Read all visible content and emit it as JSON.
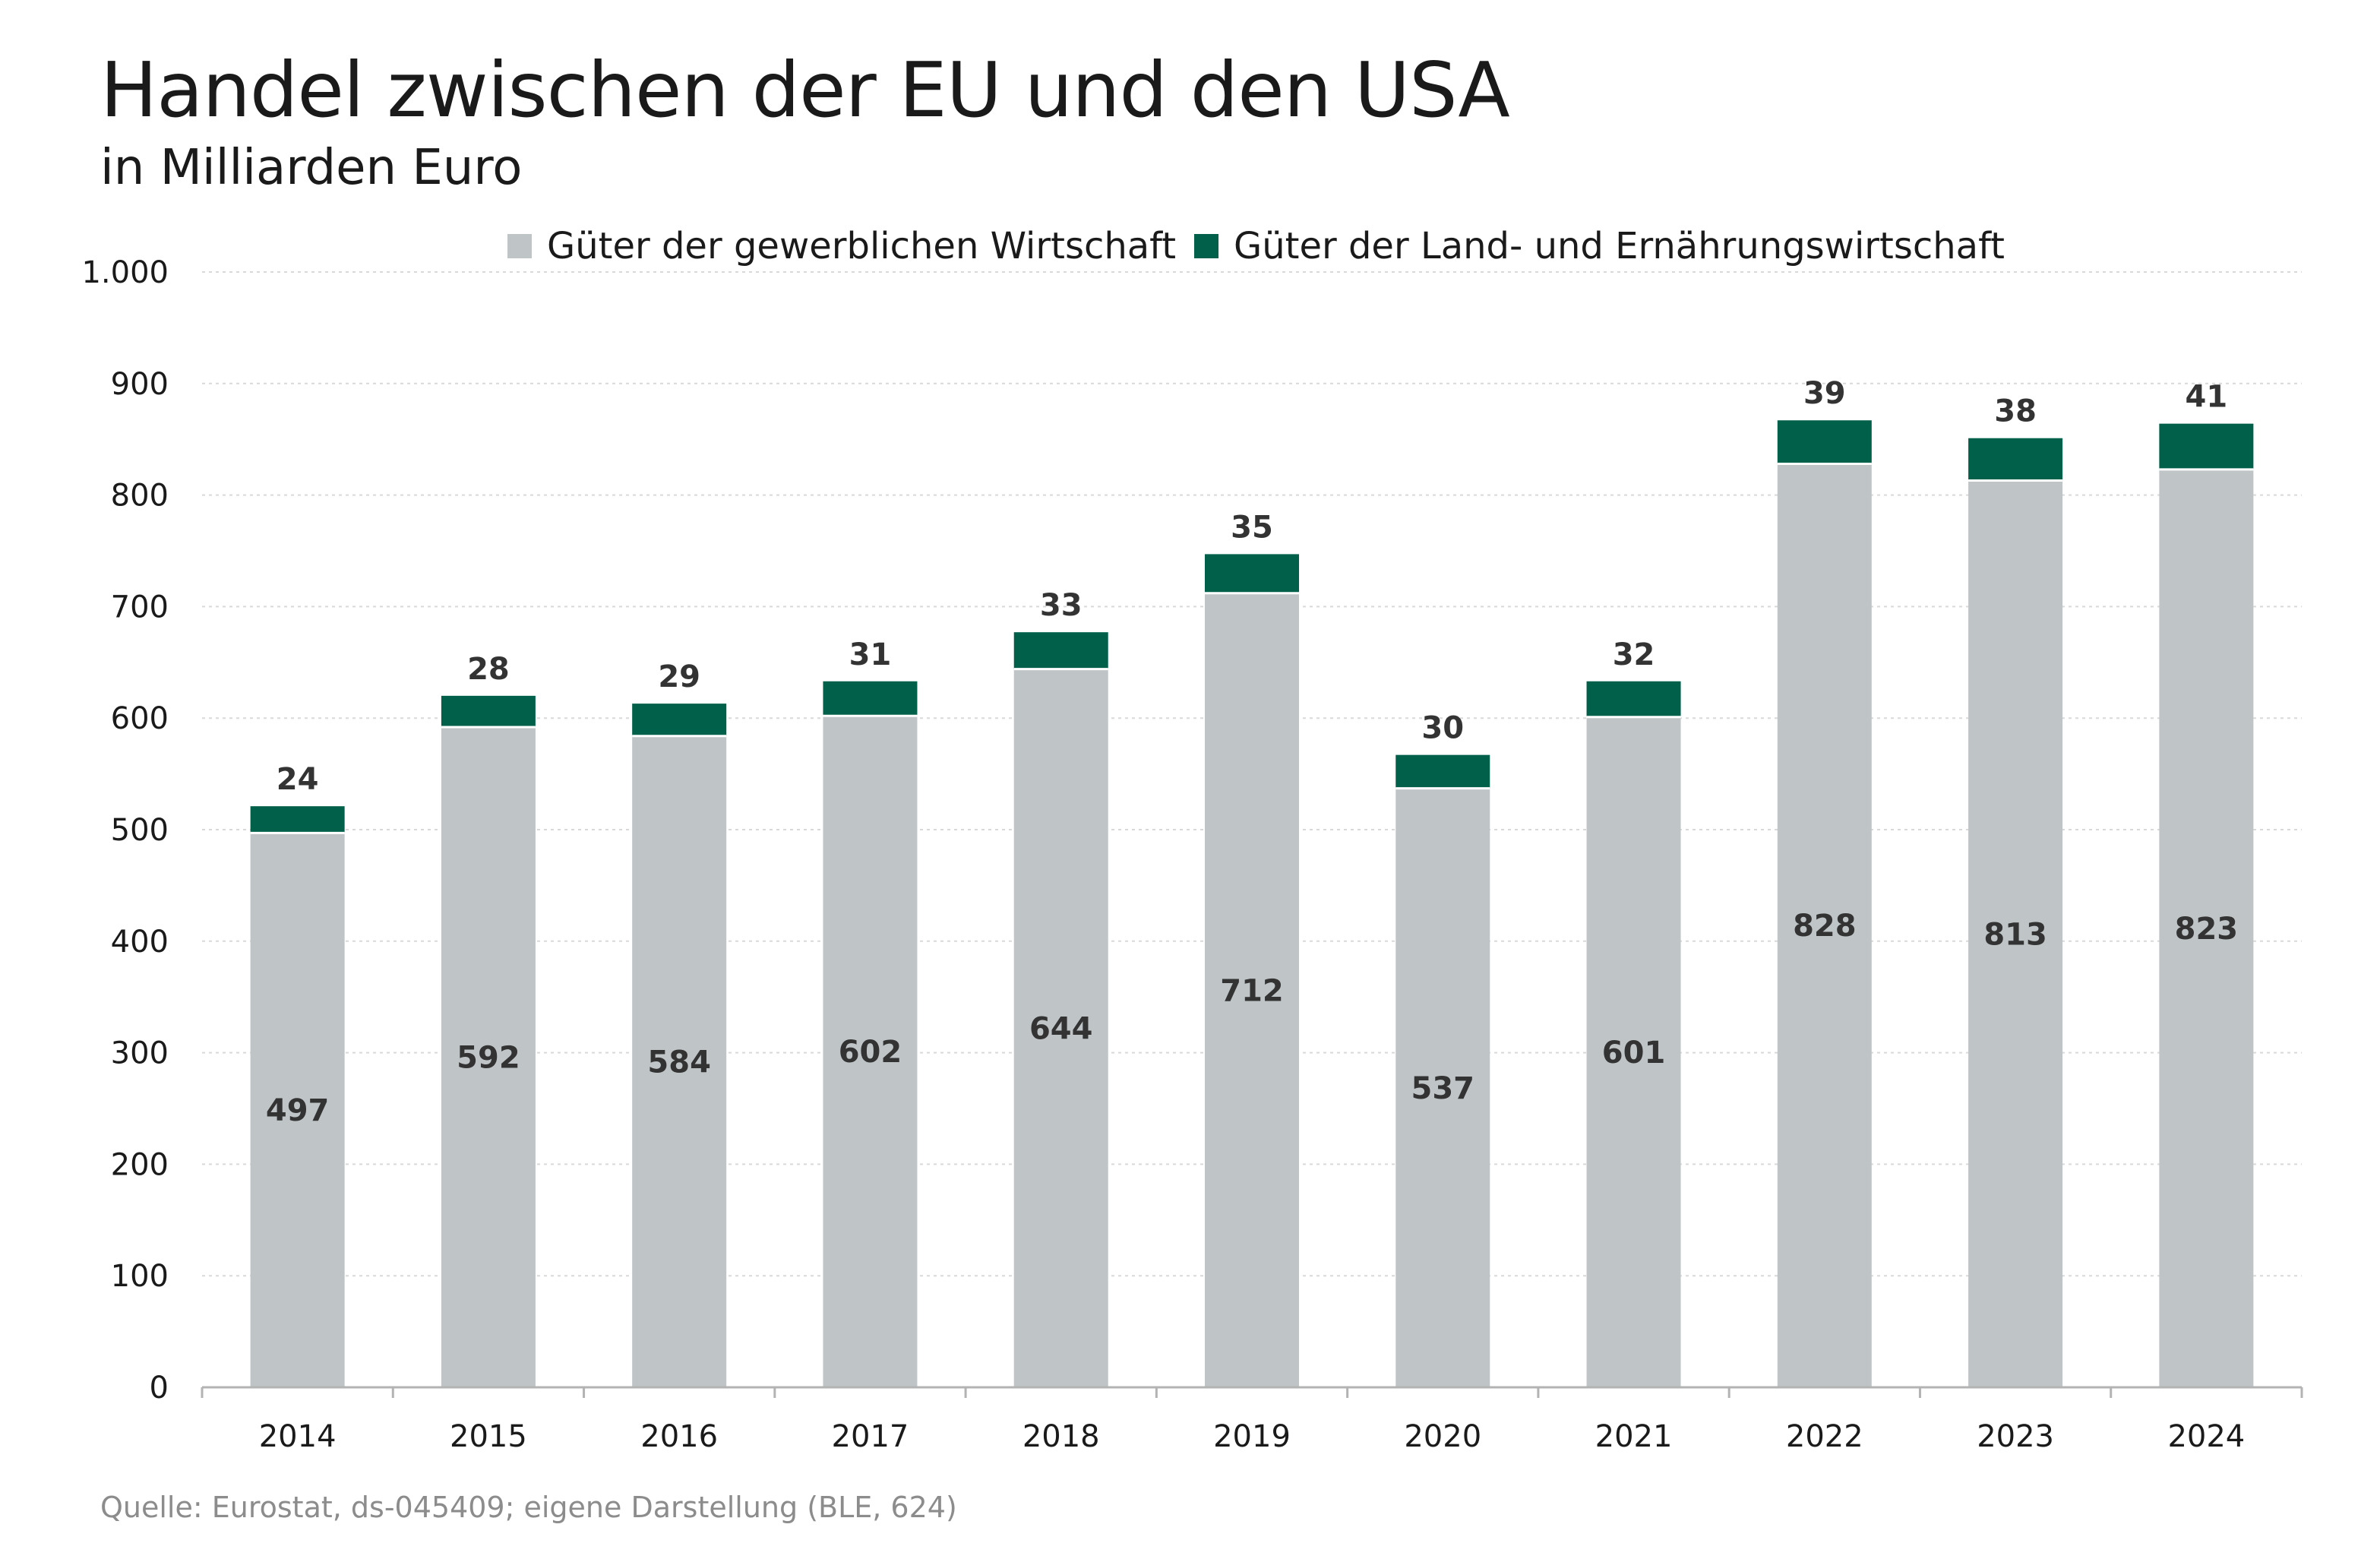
{
  "chart_data": {
    "type": "bar",
    "stacked": true,
    "title": "Handel zwischen der EU und den USA",
    "subtitle": "in Milliarden Euro",
    "source": "Quelle: Eurostat, ds-045409; eigene Darstellung (BLE, 624)",
    "categories": [
      "2014",
      "2015",
      "2016",
      "2017",
      "2018",
      "2019",
      "2020",
      "2021",
      "2022",
      "2023",
      "2024"
    ],
    "series": [
      {
        "name": "Güter der gewerblichen Wirtschaft",
        "color": "#bfc5c7",
        "values": [
          497,
          592,
          584,
          602,
          644,
          712,
          537,
          601,
          828,
          813,
          823
        ]
      },
      {
        "name": "Güter der Land- und Ernährungswirtschaft",
        "color": "#00604a",
        "values": [
          24,
          28,
          29,
          31,
          33,
          35,
          30,
          32,
          39,
          38,
          41
        ]
      }
    ],
    "ylim": [
      0,
      1000
    ],
    "yticks": [
      0,
      100,
      200,
      300,
      400,
      500,
      600,
      700,
      800,
      900,
      1000
    ],
    "ytick_labels": [
      "0",
      "100",
      "200",
      "300",
      "400",
      "500",
      "600",
      "700",
      "800",
      "900",
      "1.000"
    ],
    "grid": true,
    "legend_position": "top"
  }
}
